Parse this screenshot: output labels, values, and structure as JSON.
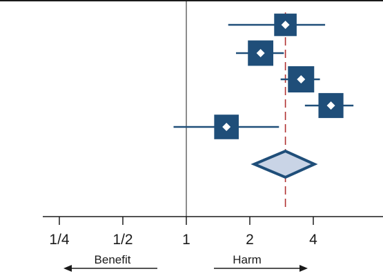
{
  "chart_data": {
    "type": "forest",
    "x_scale": "log2",
    "x_ticks": [
      {
        "value": 0.25,
        "label": "1/4"
      },
      {
        "value": 0.5,
        "label": "1/2"
      },
      {
        "value": 1,
        "label": "1"
      },
      {
        "value": 2,
        "label": "2"
      },
      {
        "value": 4,
        "label": "4"
      }
    ],
    "xlim": [
      0.175,
      6.2
    ],
    "null_line": 1,
    "pooled_reference_line": 2.95,
    "studies": [
      {
        "estimate": 2.95,
        "ci_low": 1.58,
        "ci_high": 4.55,
        "weight": 0.55
      },
      {
        "estimate": 2.25,
        "ci_low": 1.72,
        "ci_high": 2.9,
        "weight": 0.9
      },
      {
        "estimate": 3.5,
        "ci_low": 2.8,
        "ci_high": 4.3,
        "weight": 1.0
      },
      {
        "estimate": 4.85,
        "ci_low": 3.65,
        "ci_high": 6.2,
        "weight": 0.85
      },
      {
        "estimate": 1.55,
        "ci_low": 0.87,
        "ci_high": 2.75,
        "weight": 0.8
      }
    ],
    "pooled": {
      "estimate": 2.95,
      "ci_low": 2.1,
      "ci_high": 4.05
    },
    "direction_labels": {
      "left": "Benefit",
      "right": "Harm"
    },
    "colors": {
      "marker": "#1f4e79",
      "marker_center": "#ffffff",
      "pooled_fill": "#c9d4e6",
      "pooled_stroke": "#1f4e79",
      "reference_line": "#b03030",
      "axis": "#1a1a1a"
    }
  }
}
